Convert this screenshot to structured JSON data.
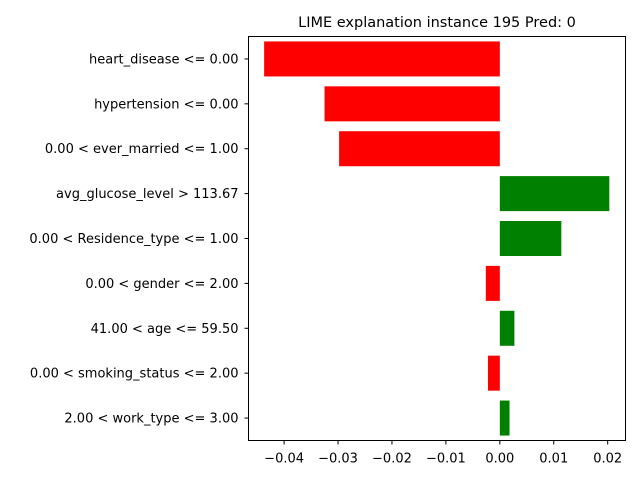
{
  "chart_data": {
    "type": "bar",
    "orientation": "horizontal",
    "title": "LIME explanation instance 195 Pred: 0",
    "xlabel": "",
    "ylabel": "",
    "xlim": [
      -0.0466,
      0.0233
    ],
    "xticks": [
      -0.04,
      -0.03,
      -0.02,
      -0.01,
      0.0,
      0.01,
      0.02
    ],
    "xtick_labels": [
      "−0.04",
      "−0.03",
      "−0.02",
      "−0.01",
      "0.00",
      "0.01",
      "0.02"
    ],
    "grid": false,
    "legend": "none",
    "colors": {
      "positive": "#008000",
      "negative": "#ff0000"
    },
    "categories": [
      "heart_disease <= 0.00",
      "hypertension <= 0.00",
      "0.00 < ever_married <= 1.00",
      "avg_glucose_level > 113.67",
      "0.00 < Residence_type <= 1.00",
      "0.00 < gender <= 2.00",
      "41.00 < age <= 59.50",
      "0.00 < smoking_status <= 2.00",
      "2.00 < work_type <= 3.00"
    ],
    "values": [
      -0.0437,
      -0.0325,
      -0.0298,
      0.0203,
      0.0114,
      -0.0026,
      0.0027,
      -0.0022,
      0.0018
    ]
  }
}
